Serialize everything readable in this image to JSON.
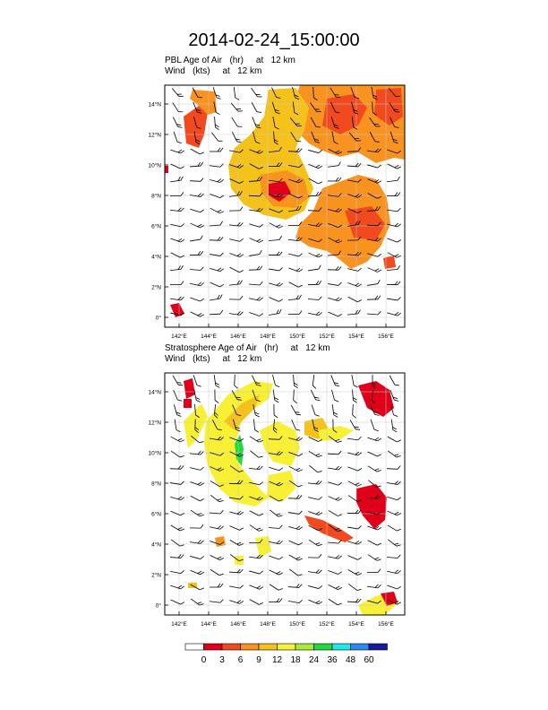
{
  "title": "2014-02-24_15:00:00",
  "panels": [
    {
      "line1": "PBL Age of Air   (hr)     at   12 km",
      "line2": "Wind   (kts)     at   12 km"
    },
    {
      "line1": "Stratosphere Age of Air   (hr)     at   12 km",
      "line2": "Wind   (kts)     at   12 km"
    }
  ],
  "map": {
    "lat_ticks": [
      "14°N",
      "12°N",
      "10°N",
      "8°N",
      "6°N",
      "4°N",
      "2°N",
      "0°"
    ],
    "lon_ticks": [
      "142°E",
      "144°E",
      "146°E",
      "148°E",
      "150°E",
      "152°E",
      "154°E",
      "156°E"
    ]
  },
  "colorbar": {
    "labels": [
      "0",
      "3",
      "6",
      "9",
      "12",
      "18",
      "24",
      "36",
      "48",
      "60"
    ],
    "colors": [
      "#ffffff",
      "#e0001a",
      "#f04a1e",
      "#f7931e",
      "#f5c21b",
      "#f7f034",
      "#a8ec35",
      "#22d83c",
      "#20e8e8",
      "#2a8af0",
      "#1a1a9c"
    ]
  }
}
